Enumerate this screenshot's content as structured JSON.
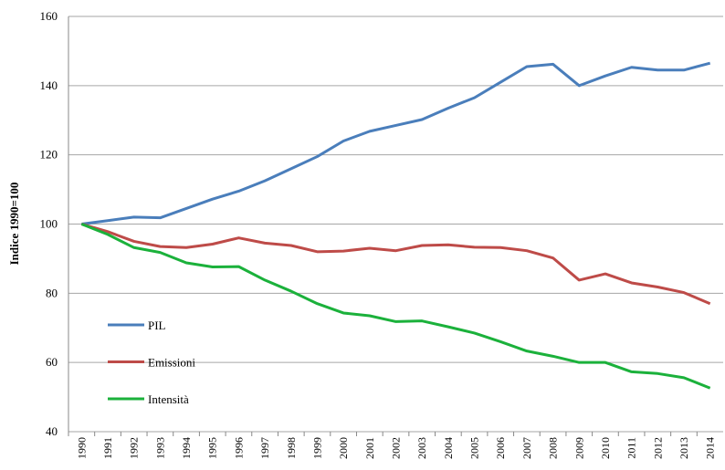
{
  "chart_data": {
    "type": "line",
    "y_axis_label": "Indice 1990=100",
    "categories": [
      "1990",
      "1991",
      "1992",
      "1993",
      "1994",
      "1995",
      "1996",
      "1997",
      "1998",
      "1999",
      "2000",
      "2001",
      "2002",
      "2003",
      "2004",
      "2005",
      "2006",
      "2007",
      "2008",
      "2009",
      "2010",
      "2011",
      "2012",
      "2013",
      "2014"
    ],
    "series": [
      {
        "name": "PIL",
        "color": "#4a7ebb",
        "values": [
          100,
          101,
          102,
          101.8,
          104.5,
          107.2,
          109.5,
          112.5,
          116,
          119.5,
          124,
          126.8,
          128.5,
          130.2,
          133.5,
          136.5,
          141,
          145.5,
          146.2,
          140,
          142.8,
          145.3,
          144.5,
          144.5,
          146.5
        ]
      },
      {
        "name": "Emissioni",
        "color": "#be4b48",
        "values": [
          100,
          97.8,
          95,
          93.5,
          93.2,
          94.2,
          96,
          94.5,
          93.8,
          92,
          92.2,
          93,
          92.3,
          93.8,
          94,
          93.3,
          93.2,
          92.3,
          90.2,
          83.8,
          85.6,
          83,
          81.8,
          80.2,
          77
        ]
      },
      {
        "name": "Intensità",
        "color": "#1bb13b",
        "values": [
          100,
          97,
          93.2,
          91.8,
          88.8,
          87.6,
          87.7,
          83.8,
          80.6,
          77,
          74.3,
          73.5,
          71.8,
          72,
          70.3,
          68.5,
          66,
          63.3,
          61.8,
          60,
          60,
          57.3,
          56.8,
          55.6,
          52.6
        ]
      }
    ],
    "ylim": [
      40,
      160
    ],
    "yticks": [
      40,
      60,
      80,
      100,
      120,
      140,
      160
    ],
    "grid": true,
    "legend": "lower left"
  }
}
